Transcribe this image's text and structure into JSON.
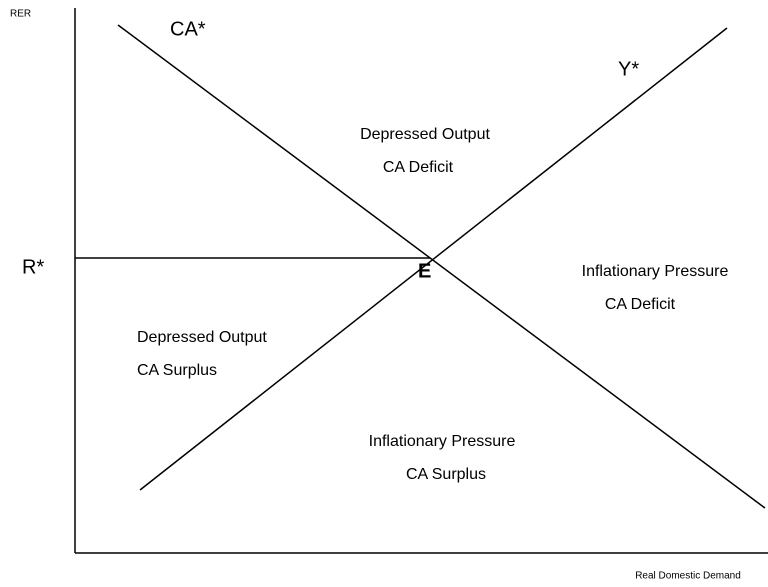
{
  "axes": {
    "y_label": "RER",
    "x_label": "Real Domestic Demand"
  },
  "curves": [
    {
      "label": "CA*"
    },
    {
      "label": "Y*"
    }
  ],
  "reference": {
    "label": "R*"
  },
  "equilibrium": {
    "label": "E"
  },
  "regions": [
    {
      "lines": [
        "Depressed Output",
        "CA Deficit"
      ]
    },
    {
      "lines": [
        "Inflationary Pressure",
        "CA Deficit"
      ]
    },
    {
      "lines": [
        "Depressed Output",
        "CA Surplus"
      ]
    },
    {
      "lines": [
        "Inflationary Pressure",
        "CA Surplus"
      ]
    }
  ]
}
